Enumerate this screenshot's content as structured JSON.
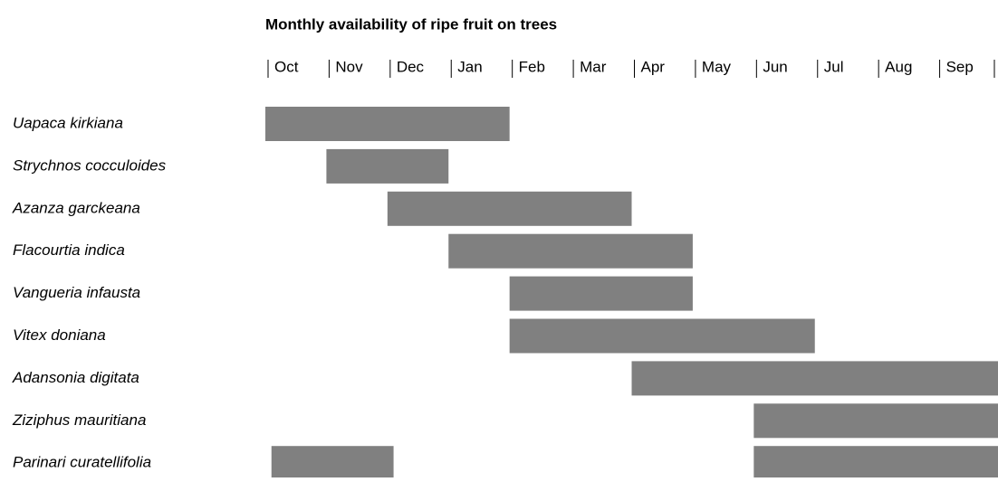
{
  "chart_data": {
    "type": "gantt",
    "title": "Monthly availability of ripe fruit on trees",
    "months": [
      "Oct",
      "Nov",
      "Dec",
      "Jan",
      "Feb",
      "Mar",
      "Apr",
      "May",
      "Jun",
      "Jul",
      "Aug",
      "Sep"
    ],
    "xlim": [
      0,
      12
    ],
    "categories": [
      "Uapaca kirkiana",
      "Strychnos cocculoides",
      "Azanza garckeana",
      "Flacourtia indica",
      "Vangueria infausta",
      "Vitex doniana",
      "Adansonia digitata",
      "Ziziphus mauritiana",
      "Parinari curatellifolia"
    ],
    "bars": [
      [
        [
          0,
          4
        ]
      ],
      [
        [
          1,
          3
        ]
      ],
      [
        [
          2,
          6
        ]
      ],
      [
        [
          3,
          7
        ]
      ],
      [
        [
          4,
          7
        ]
      ],
      [
        [
          4,
          9
        ]
      ],
      [
        [
          6,
          12
        ]
      ],
      [
        [
          8,
          12
        ]
      ],
      [
        [
          0.1,
          2.1
        ],
        [
          8,
          12
        ]
      ]
    ],
    "color": "#808080"
  }
}
